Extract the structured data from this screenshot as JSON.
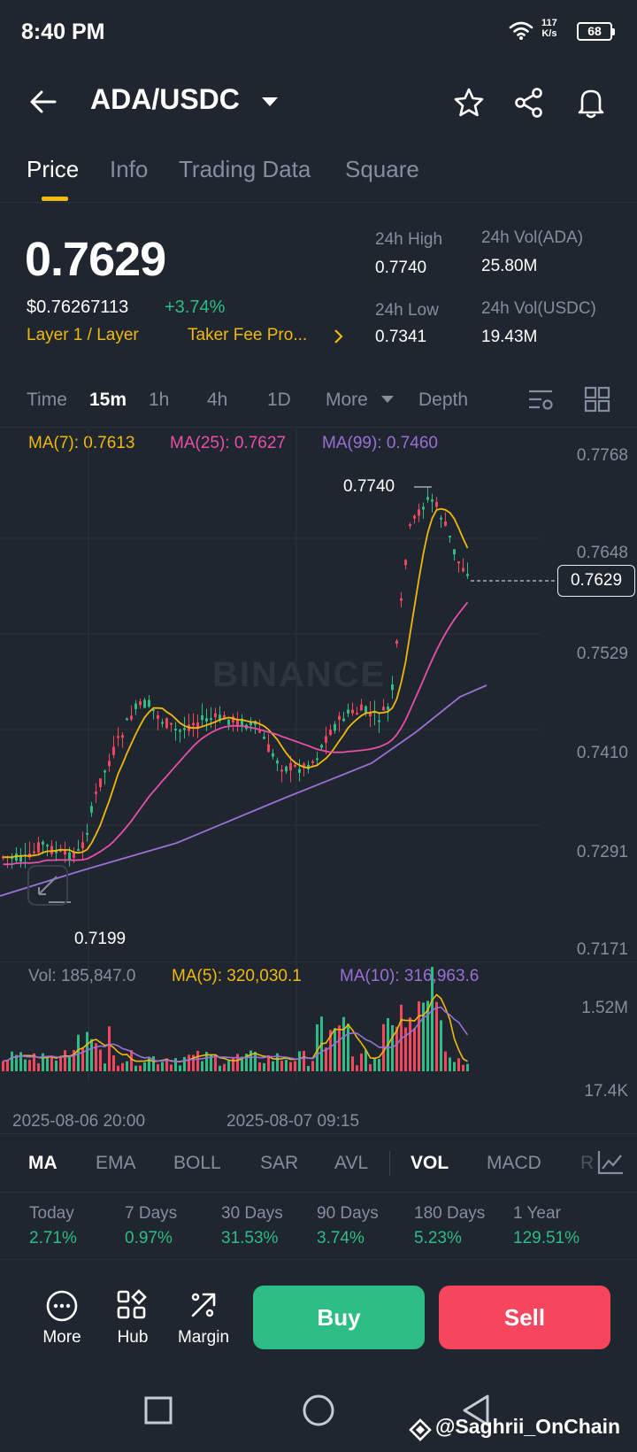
{
  "status": {
    "time": "8:40 PM",
    "speed_value": "117",
    "speed_unit": "K/s",
    "battery": "68"
  },
  "header": {
    "pair": "ADA/USDC"
  },
  "tabs": [
    {
      "label": "Price",
      "active": true
    },
    {
      "label": "Info"
    },
    {
      "label": "Trading Data"
    },
    {
      "label": "Square"
    }
  ],
  "ticker": {
    "last_price": "0.7629",
    "usd_price": "$0.76267113",
    "change": "+3.74%",
    "tag_category": "Layer 1 / Layer",
    "tag_fee": "Taker Fee Pro...",
    "high_label": "24h High",
    "high": "0.7740",
    "low_label": "24h Low",
    "low": "0.7341",
    "vol_base_label": "24h Vol(ADA)",
    "vol_base": "25.80M",
    "vol_quote_label": "24h Vol(USDC)",
    "vol_quote": "19.43M"
  },
  "timeframes": {
    "time": "Time",
    "m15": "15m",
    "h1": "1h",
    "h4": "4h",
    "d1": "1D",
    "more": "More",
    "depth": "Depth"
  },
  "ma": {
    "ma7": "MA(7): 0.7613",
    "ma25": "MA(25): 0.7627",
    "ma99": "MA(99): 0.7460"
  },
  "price_axis": [
    "0.7768",
    "0.7648",
    "0.7529",
    "0.7410",
    "0.7291",
    "0.7171"
  ],
  "current_price_tag": "0.7629",
  "chart_labels": {
    "high": "0.7740",
    "low": "0.7199",
    "watermark": "BINANCE"
  },
  "volume": {
    "vol": "Vol: 185,847.0",
    "ma5": "MA(5): 320,030.1",
    "ma10": "MA(10): 316,963.6",
    "axis_top": "1.52M",
    "axis_bottom": "17.4K"
  },
  "dates": [
    "2025-08-06 20:00",
    "2025-08-07 09:15"
  ],
  "indicators": [
    "MA",
    "EMA",
    "BOLL",
    "SAR",
    "AVL",
    "VOL",
    "MACD",
    "R"
  ],
  "performance": [
    {
      "label": "Today",
      "value": "2.71%"
    },
    {
      "label": "7 Days",
      "value": "0.97%"
    },
    {
      "label": "30 Days",
      "value": "31.53%"
    },
    {
      "label": "90 Days",
      "value": "3.74%"
    },
    {
      "label": "180 Days",
      "value": "5.23%"
    },
    {
      "label": "1 Year",
      "value": "129.51%"
    }
  ],
  "bottom": {
    "more": "More",
    "hub": "Hub",
    "margin": "Margin",
    "buy": "Buy",
    "sell": "Sell"
  },
  "watermark_user": "@Saghrii_OnChain",
  "colors": {
    "up": "#2ebd85",
    "down": "#f6465d",
    "ma7": "#f0b90b",
    "ma25": "#e84fa8",
    "ma99": "#9b6fd6",
    "accent": "#f0b90b"
  }
}
